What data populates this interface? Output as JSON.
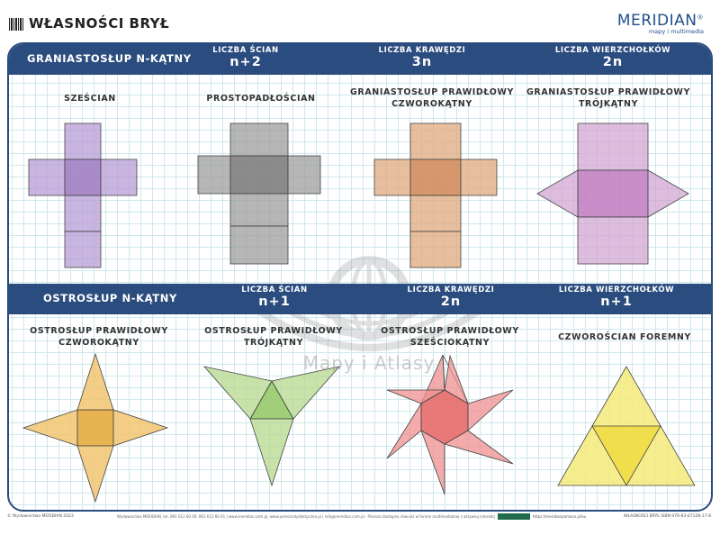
{
  "header": {
    "title": "WŁASNOŚCI BRYŁ",
    "brand": "MERIDIAN",
    "brand_mark": "®",
    "brand_tagline": "mapy i multimedia"
  },
  "prism": {
    "heading": "GRANIASTOSŁUP N-KĄTNY",
    "faces_label": "LICZBA ŚCIAN",
    "faces_value": "n+2",
    "edges_label": "LICZBA KRAWĘDZI",
    "edges_value": "3n",
    "vertices_label": "LICZBA WIERZCHOŁKÓW",
    "vertices_value": "2n",
    "nets": [
      {
        "title": "SZEŚCIAN",
        "color": "#b79cd6"
      },
      {
        "title": "PROSTOPADŁOŚCIAN",
        "color": "#9e9e9e"
      },
      {
        "title": "GRANIASTOSŁUP PRAWIDŁOWY CZWOROKĄTNY",
        "color": "#e0a97e"
      },
      {
        "title": "GRANIASTOSŁUP PRAWIDŁOWY TRÓJKĄTNY",
        "color": "#d3a6d3"
      }
    ]
  },
  "pyramid": {
    "heading": "OSTROSŁUP N-KĄTNY",
    "faces_label": "LICZBA ŚCIAN",
    "faces_value": "n+1",
    "edges_label": "LICZBA KRAWĘDZI",
    "edges_value": "2n",
    "vertices_label": "LICZBA WIERZCHOŁKÓW",
    "vertices_value": "n+1",
    "nets": [
      {
        "title": "OSTROSŁUP PRAWIDŁOWY CZWOROKĄTNY",
        "color": "#f1c268"
      },
      {
        "title": "OSTROSŁUP PRAWIDŁOWY TRÓJKĄTNY",
        "color": "#b5d88e"
      },
      {
        "title": "OSTROSŁUP PRAWIDŁOWY SZEŚCIOKĄTNY",
        "color": "#ef8f8f"
      },
      {
        "title": "CZWOROŚCIAN FOREMNY",
        "color": "#f5ea7a"
      }
    ]
  },
  "watermark": "Mapy i Atlasy",
  "footer": {
    "left": "© Wydawnictwo MERIDIAN 2023",
    "middle": "Wydawnictwo MERIDIAN, tel. 891 612 60 00, 891 612 60 01 | www.meridian.com.pl, www.pomocedydaktyczne.pl | info@meridian.com.pl · Plansza dostępna również w formie multimedialnej z aktywną interaktywnością",
    "middle2": "https://meridianpomoce.pl/eu",
    "right": "WŁASNOŚCI BRYŁ ISBN 978-83-67128-17-8"
  }
}
